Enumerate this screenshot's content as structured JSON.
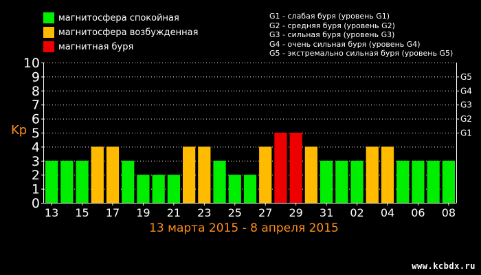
{
  "legend": {
    "quiet": {
      "label": "магнитосфера спокойная",
      "color": "#00ee00"
    },
    "excited": {
      "label": "магнитосфера возбужденная",
      "color": "#ffbb00"
    },
    "storm": {
      "label": "магнитная буря",
      "color": "#ee0000"
    }
  },
  "storm_levels": [
    "G1 - слабая буря (уровень G1)",
    "G2 - средняя буря (уровень G2)",
    "G3 - сильная буря (уровень G3)",
    "G4 - очень сильная буря (уровень G4)",
    "G5 - экстремально сильная буря (уровень G5)"
  ],
  "watermark": "www.kcbdx.ru",
  "chart_data": {
    "type": "bar",
    "title": "",
    "xlabel": "13 марта 2015 - 8 апреля 2015",
    "ylabel": "Kp",
    "ylim": [
      0,
      10
    ],
    "yticks": [
      0,
      1,
      2,
      3,
      4,
      5,
      6,
      7,
      8,
      9,
      10
    ],
    "right_ticks": [
      {
        "label": "G1",
        "y": 5
      },
      {
        "label": "G2",
        "y": 6
      },
      {
        "label": "G3",
        "y": 7
      },
      {
        "label": "G4",
        "y": 8
      },
      {
        "label": "G5",
        "y": 9
      }
    ],
    "grid": true,
    "x_tick_labels": [
      "13",
      "15",
      "17",
      "19",
      "21",
      "23",
      "25",
      "27",
      "29",
      "31",
      "02",
      "04",
      "06",
      "08"
    ],
    "categories": [
      "13",
      "14",
      "15",
      "16",
      "17",
      "18",
      "19",
      "20",
      "21",
      "22",
      "23",
      "24",
      "25",
      "26",
      "27",
      "28",
      "29",
      "30",
      "31",
      "01",
      "02",
      "03",
      "04",
      "05",
      "06",
      "07",
      "08"
    ],
    "values": [
      3,
      3,
      3,
      4,
      4,
      3,
      2,
      2,
      2,
      4,
      4,
      3,
      2,
      2,
      4,
      5,
      5,
      4,
      3,
      3,
      3,
      4,
      4,
      3,
      3,
      3,
      3
    ],
    "colors": {
      "quiet": "#00ee00",
      "excited": "#ffbb00",
      "storm": "#ee0000"
    }
  }
}
